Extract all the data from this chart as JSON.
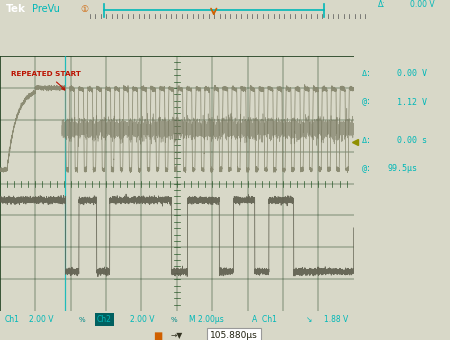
{
  "bg_outer": "#d8d8c8",
  "bg_screen": "#080800",
  "bg_header": "#141414",
  "bg_status": "#080800",
  "grid_color": "#1a3a1a",
  "ch1_color": "#909070",
  "ch2_color": "#707060",
  "cyan_color": "#00b8b8",
  "yellow_color": "#c8a000",
  "orange_color": "#d06000",
  "right_bg": "#101008",
  "red_label_color": "#bb1100",
  "right_delta1": "Δ:   0.00 V",
  "right_at1": "@:   1.12 V",
  "right_delta2": "Δ:   0.00 s",
  "right_at2": "@: 99.5μs",
  "repeated_start_label": "REPEATED START",
  "ch1_label": "Ch1",
  "ch2_label": "Ch2",
  "scale1": "2.00 V",
  "scale2": "2.00 V",
  "time_scale": "M 2.00μs",
  "trig_text": "A  Ch1",
  "trig_level": "1.88 V",
  "bottom_time": "105.880μs"
}
